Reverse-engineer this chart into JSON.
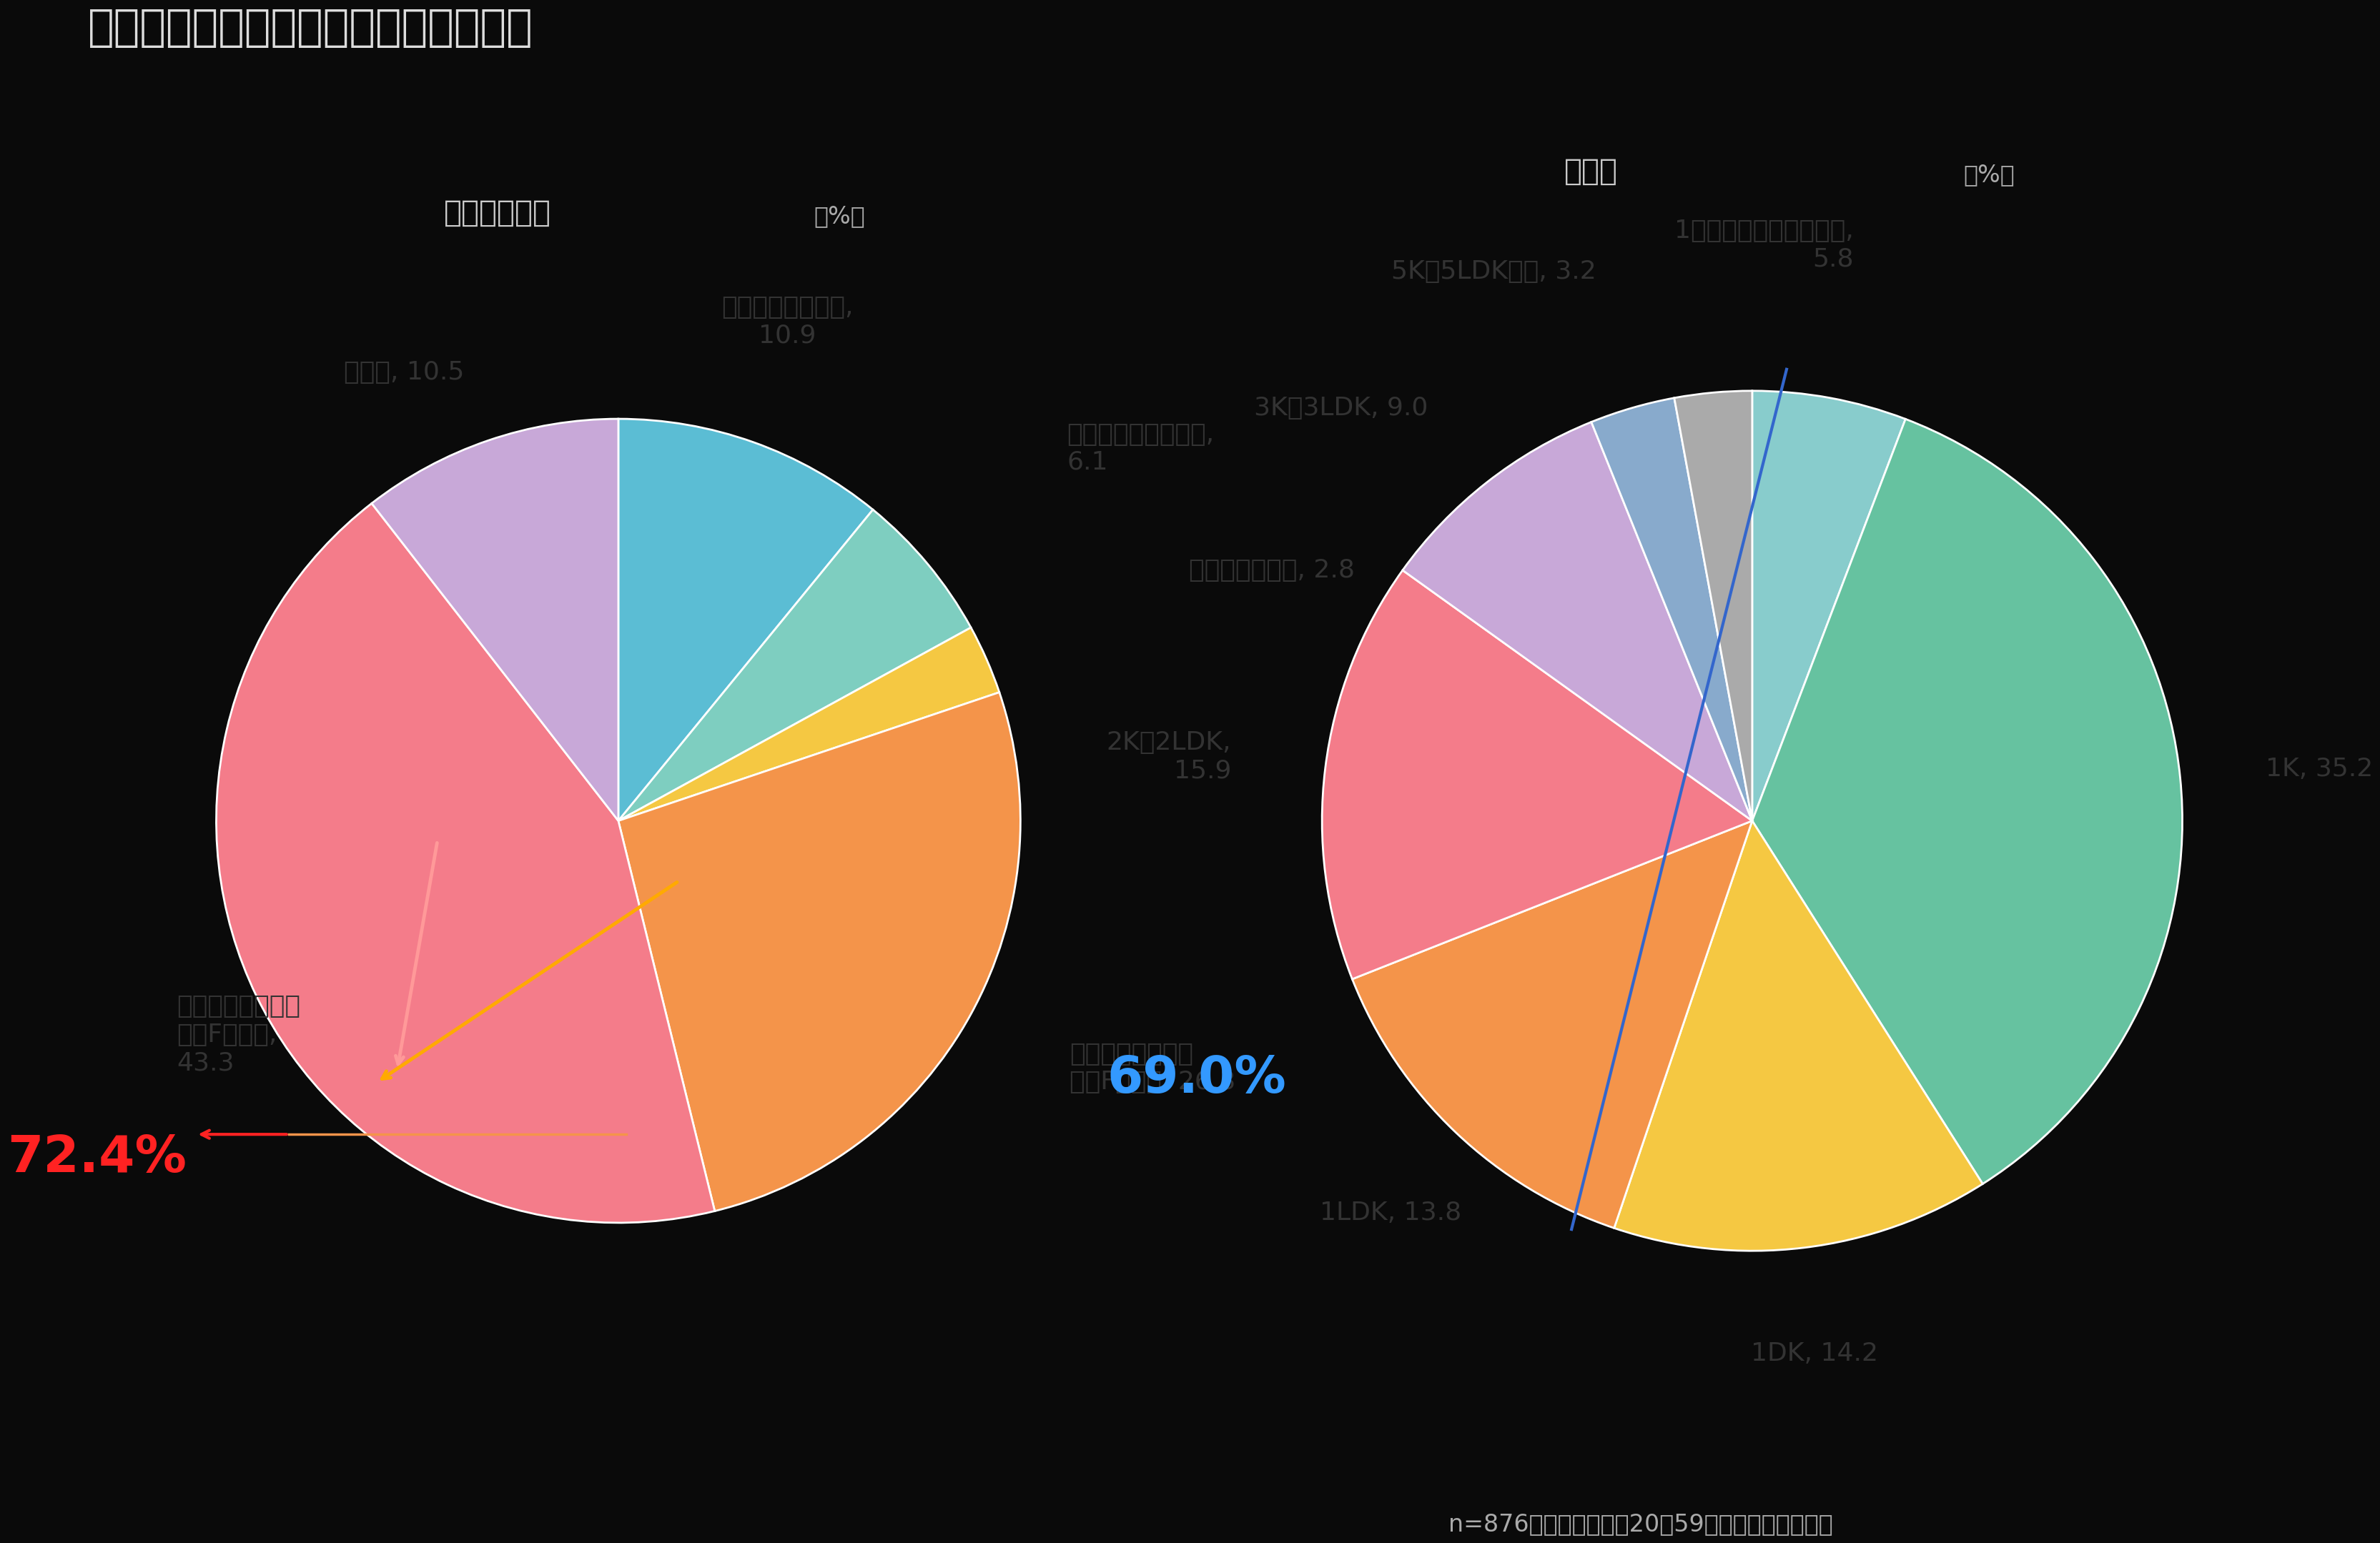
{
  "background_color": "#0a0a0a",
  "title": "おひとり様の住まい（形式、間取り）",
  "title_color": "#dddddd",
  "title_fontsize": 44,
  "pie1_title": "住まいの形式",
  "pie1_pct_label": "（%）",
  "pie1_values": [
    10.9,
    6.1,
    2.8,
    26.3,
    43.3,
    10.5
  ],
  "pie1_colors": [
    "#5bbdd4",
    "#7ecec0",
    "#f5c842",
    "#f4944a",
    "#f47c8a",
    "#c8a8d8"
  ],
  "pie1_startangle": 90,
  "pie1_annotation": "72.4%",
  "pie1_annotation_color": "#ff2222",
  "pie1_annotation_fontsize": 52,
  "pie1_labels": [
    "（持ち家）戸建て,\n10.9",
    "（持ち家）集合住宅,\n6.1",
    "（賃貸）戸建て, 2.8",
    "（賃貸）集合住宅\n（２F以下）, 26.3",
    "（賃貸）集合住宅\n（３F以上）,\n43.3",
    "その他, 10.5"
  ],
  "pie2_title": "間取り",
  "pie2_pct_label": "（%）",
  "pie2_values": [
    5.8,
    35.2,
    14.2,
    13.8,
    15.9,
    9.0,
    3.2,
    2.9
  ],
  "pie2_colors": [
    "#88cccc",
    "#66c2aa",
    "#f5c842",
    "#f4944a",
    "#f47c8a",
    "#c8a8d8",
    "#88aac8",
    "#aaaaaa"
  ],
  "pie2_startangle": 90,
  "pie2_annotation": "69.0%",
  "pie2_annotation_color": "#3399ff",
  "pie2_annotation_fontsize": 52,
  "pie2_labels": [
    "1部屋（キッチン無し）,\n5.8",
    "1K, 35.2",
    "1DK, 14.2",
    "1LDK, 13.8",
    "2K～2LDK,\n15.9",
    "3K～3LDK, 9.0",
    "5K～5LDK以上, 3.2",
    ""
  ],
  "footnote": "n=876　　（ベース：20～59歳おひとり様男女）",
  "footnote_color": "#aaaaaa",
  "footnote_fontsize": 24,
  "label_color": "#333333",
  "label_fontsize": 26
}
